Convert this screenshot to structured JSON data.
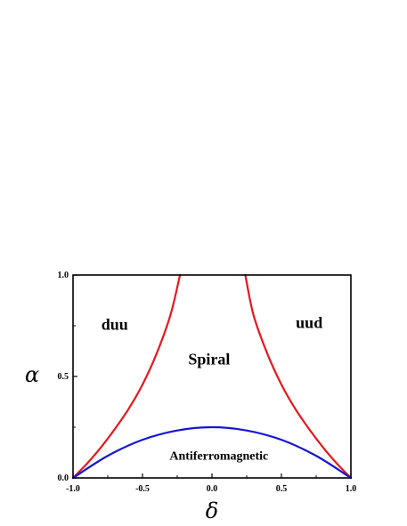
{
  "chart_data": {
    "type": "line",
    "xlabel": "δ",
    "ylabel": "α",
    "xlim": [
      -1.0,
      1.0
    ],
    "ylim": [
      0.0,
      1.0
    ],
    "x_ticks": [
      "-1.0",
      "-0.5",
      "0.0",
      "0.5",
      "1.0"
    ],
    "y_ticks": [
      "0.0",
      "0.5",
      "1.0"
    ],
    "grid": false,
    "series": [
      {
        "color": "#e8161d",
        "points": [
          [
            -1.0,
            0.0
          ],
          [
            -0.9,
            0.07
          ],
          [
            -0.8,
            0.15
          ],
          [
            -0.7,
            0.24
          ],
          [
            -0.6,
            0.34
          ],
          [
            -0.5,
            0.46
          ],
          [
            -0.4,
            0.61
          ],
          [
            -0.3,
            0.8
          ],
          [
            -0.23,
            1.0
          ]
        ]
      },
      {
        "color": "#e8161d",
        "points": [
          [
            0.24,
            1.0
          ],
          [
            0.3,
            0.8
          ],
          [
            0.4,
            0.61
          ],
          [
            0.5,
            0.46
          ],
          [
            0.6,
            0.34
          ],
          [
            0.7,
            0.24
          ],
          [
            0.8,
            0.15
          ],
          [
            0.9,
            0.07
          ],
          [
            1.0,
            0.0
          ]
        ]
      },
      {
        "color": "#1515d4",
        "points": [
          [
            -1.0,
            0.0
          ],
          [
            -0.75,
            0.109
          ],
          [
            -0.5,
            0.188
          ],
          [
            -0.25,
            0.234
          ],
          [
            0.0,
            0.25
          ],
          [
            0.25,
            0.234
          ],
          [
            0.5,
            0.188
          ],
          [
            0.75,
            0.109
          ],
          [
            1.0,
            0.0
          ]
        ]
      }
    ],
    "annotations": [
      {
        "text": "duu",
        "x": -0.7,
        "y": 0.73,
        "size": "large"
      },
      {
        "text": "uud",
        "x": 0.7,
        "y": 0.74,
        "size": "large"
      },
      {
        "text": "Spiral",
        "x": -0.02,
        "y": 0.56,
        "size": "large"
      },
      {
        "text": "Antiferromagnetic",
        "x": 0.05,
        "y": 0.09,
        "size": "small"
      }
    ]
  }
}
